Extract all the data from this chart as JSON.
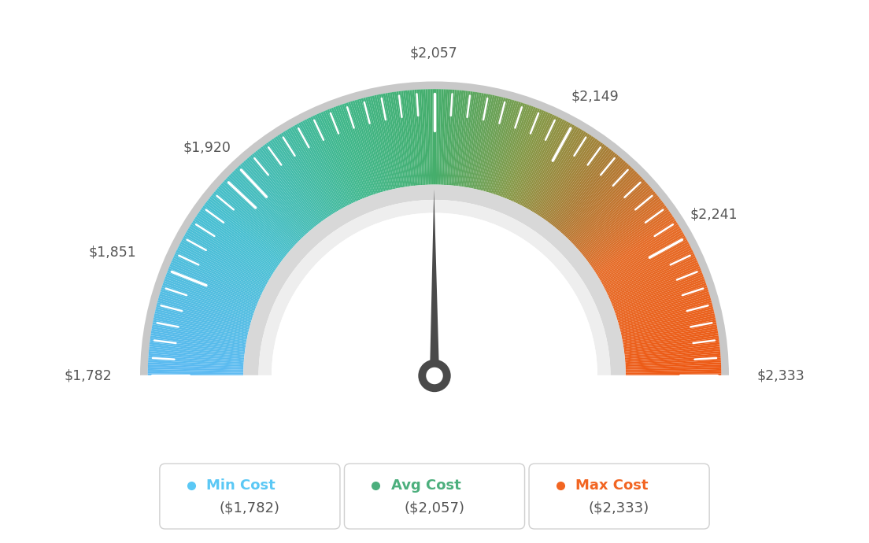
{
  "min_val": 1782,
  "avg_val": 2057,
  "max_val": 2333,
  "tick_labels": [
    "$1,782",
    "$1,851",
    "$1,920",
    "$2,057",
    "$2,149",
    "$2,241",
    "$2,333"
  ],
  "tick_values": [
    1782,
    1851,
    1920,
    2057,
    2149,
    2241,
    2333
  ],
  "minor_tick_count": 14,
  "legend_labels": [
    "Min Cost",
    "Avg Cost",
    "Max Cost"
  ],
  "legend_values": [
    "($1,782)",
    "($2,057)",
    "($2,333)"
  ],
  "legend_colors": [
    "#5bc8f5",
    "#4caf7d",
    "#f26522"
  ],
  "bg_color": "#ffffff",
  "color_stops": [
    [
      0.0,
      [
        0.36,
        0.73,
        0.95
      ]
    ],
    [
      0.2,
      [
        0.28,
        0.75,
        0.82
      ]
    ],
    [
      0.38,
      [
        0.25,
        0.72,
        0.55
      ]
    ],
    [
      0.5,
      [
        0.27,
        0.68,
        0.42
      ]
    ],
    [
      0.62,
      [
        0.52,
        0.6,
        0.28
      ]
    ],
    [
      0.72,
      [
        0.68,
        0.48,
        0.2
      ]
    ],
    [
      0.82,
      [
        0.9,
        0.42,
        0.15
      ]
    ],
    [
      1.0,
      [
        0.93,
        0.35,
        0.08
      ]
    ]
  ]
}
